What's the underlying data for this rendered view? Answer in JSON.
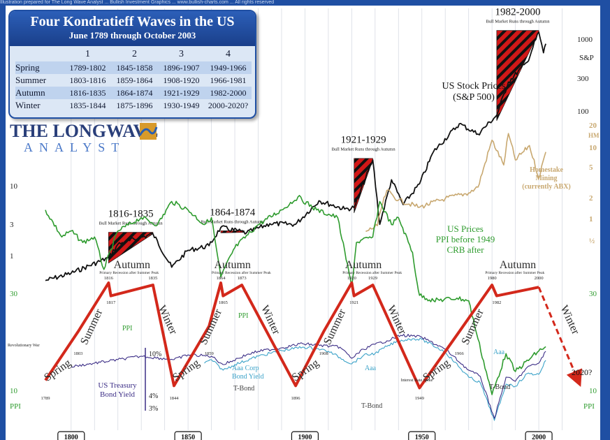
{
  "source_line": "Illustration prepared for The Long Wave Analyst ... Bullish Investment Graphics ... www.bullish-charts.com ... All rights reserved",
  "table": {
    "title": "Four Kondratieff Waves in the US",
    "subtitle": "June 1789 through October 2003",
    "columns": [
      "1",
      "2",
      "3",
      "4"
    ],
    "rows": [
      {
        "season": "Spring",
        "periods": [
          "1789-1802",
          "1845-1858",
          "1896-1907",
          "1949-1966"
        ]
      },
      {
        "season": "Summer",
        "periods": [
          "1803-1816",
          "1859-1864",
          "1908-1920",
          "1966-1981"
        ]
      },
      {
        "season": "Autumn",
        "periods": [
          "1816-1835",
          "1864-1874",
          "1921-1929",
          "1982-2000"
        ]
      },
      {
        "season": "Winter",
        "periods": [
          "1835-1844",
          "1875-1896",
          "1930-1949",
          "2000-2020?"
        ]
      }
    ]
  },
  "logo": {
    "line1": "THE LONGWAVE",
    "line2": "ANALYST"
  },
  "colors": {
    "background": "#1f4fa3",
    "wave": "#d3281b",
    "stock": "#111111",
    "ppi": "#2e9b2e",
    "homestake": "#c8a870",
    "aaa": "#3aa2c8",
    "treasury": "#5a4f8f",
    "tbond": "#3b2d86",
    "season_text": "#2b2b2b",
    "axis_green": "#2e9b2e",
    "axis_gold": "#c8a870"
  },
  "chart_data": {
    "type": "line",
    "title": "Four Kondratieff Waves in the US",
    "x_range": [
      1789,
      2020
    ],
    "x_tick_labels": [
      "1800",
      "1850",
      "1900",
      "1950",
      "2000"
    ],
    "wave": {
      "name": "Kondratieff wave",
      "points": [
        [
          1789,
          10
        ],
        [
          1803,
          55
        ],
        [
          1816,
          100
        ],
        [
          1817,
          88
        ],
        [
          1835,
          98
        ],
        [
          1844,
          5
        ],
        [
          1859,
          60
        ],
        [
          1864,
          100
        ],
        [
          1865,
          88
        ],
        [
          1873,
          98
        ],
        [
          1896,
          5
        ],
        [
          1908,
          55
        ],
        [
          1920,
          100
        ],
        [
          1921,
          88
        ],
        [
          1929,
          98
        ],
        [
          1949,
          3
        ],
        [
          1966,
          55
        ],
        [
          1980,
          98
        ],
        [
          1982,
          88
        ],
        [
          2000,
          96
        ],
        [
          2013,
          40
        ]
      ],
      "forecast_year": "2020?"
    },
    "season_labels": [
      {
        "text": "Spring",
        "year": 1795
      },
      {
        "text": "Summer",
        "year": 1810
      },
      {
        "text": "Autumn",
        "year": 1826
      },
      {
        "text": "Winter",
        "year": 1840
      },
      {
        "text": "Spring",
        "year": 1850
      },
      {
        "text": "Summer",
        "year": 1861
      },
      {
        "text": "Autumn",
        "year": 1869
      },
      {
        "text": "Winter",
        "year": 1884
      },
      {
        "text": "Spring",
        "year": 1901
      },
      {
        "text": "Summer",
        "year": 1914
      },
      {
        "text": "Autumn",
        "year": 1925
      },
      {
        "text": "Winter",
        "year": 1938
      },
      {
        "text": "Spring",
        "year": 1957
      },
      {
        "text": "Summer",
        "year": 1973
      },
      {
        "text": "Autumn",
        "year": 1991
      },
      {
        "text": "Winter",
        "year": 2012
      }
    ],
    "peak_labels": [
      "1816",
      "1817",
      "1835",
      "1864",
      "1865",
      "1873",
      "1920",
      "1921",
      "1929",
      "1980",
      "1982",
      "2000"
    ],
    "trough_labels": [
      "1789",
      "1844",
      "1896",
      "1949"
    ],
    "intermediate_labels": [
      "1803",
      "1859",
      "1908",
      "1966"
    ],
    "annotations": {
      "primary_recession": "Primary Recession after Summer Peak",
      "bull_market": "Bull Market Runs through Autumn",
      "revolutionary_war": "Revolutionary War",
      "interest_rate_spike": "Interest Rate Spike"
    },
    "bull_market_periods": [
      {
        "label": "1816-1835",
        "start": 1816,
        "end": 1835
      },
      {
        "label": "1864-1874",
        "start": 1864,
        "end": 1874
      },
      {
        "label": "1921-1929",
        "start": 1921,
        "end": 1929
      },
      {
        "label": "1982-2000",
        "start": 1982,
        "end": 2000
      }
    ],
    "series": [
      {
        "name": "US Stock Prices (S&P 500)",
        "label_lines": [
          "US Stock Prices",
          "(S&P 500)"
        ],
        "scale": "log",
        "points": [
          [
            1789,
            0.8
          ],
          [
            1800,
            1.0
          ],
          [
            1816,
            1.6
          ],
          [
            1820,
            2.4
          ],
          [
            1835,
            3.3
          ],
          [
            1843,
            1.2
          ],
          [
            1850,
            2.0
          ],
          [
            1859,
            2.3
          ],
          [
            1864,
            4.0
          ],
          [
            1875,
            3.4
          ],
          [
            1885,
            4.5
          ],
          [
            1896,
            4.4
          ],
          [
            1906,
            9.0
          ],
          [
            1917,
            7.0
          ],
          [
            1921,
            7.3
          ],
          [
            1929,
            31
          ],
          [
            1932,
            4.4
          ],
          [
            1937,
            17
          ],
          [
            1942,
            8.0
          ],
          [
            1949,
            15
          ],
          [
            1955,
            40
          ],
          [
            1966,
            93
          ],
          [
            1974,
            68
          ],
          [
            1982,
            120
          ],
          [
            1987,
            330
          ],
          [
            1995,
            600
          ],
          [
            2000,
            1500
          ],
          [
            2002,
            800
          ],
          [
            2003,
            1050
          ]
        ]
      },
      {
        "name": "Homestake Mining (currently ABX)",
        "label_lines": [
          "Homestake",
          "Mining",
          "(currently ABX)"
        ],
        "scale": "log",
        "points": [
          [
            1926,
            0.75
          ],
          [
            1931,
            0.9
          ],
          [
            1932,
            1.3
          ],
          [
            1935,
            2.7
          ],
          [
            1940,
            2.0
          ],
          [
            1949,
            1.6
          ],
          [
            1960,
            2.1
          ],
          [
            1970,
            2.5
          ],
          [
            1974,
            3.0
          ],
          [
            1980,
            13
          ],
          [
            1985,
            6.0
          ],
          [
            1987,
            16
          ],
          [
            1990,
            7.0
          ],
          [
            1996,
            11
          ],
          [
            2000,
            4.0
          ],
          [
            2003,
            9.0
          ]
        ]
      },
      {
        "name": "US Prices",
        "label_lines": [
          "US Prices",
          "PPI before 1949",
          "CRB after"
        ],
        "points": [
          [
            1789,
            10
          ],
          [
            1796,
            14
          ],
          [
            1800,
            13
          ],
          [
            1805,
            15
          ],
          [
            1810,
            14
          ],
          [
            1814,
            21
          ],
          [
            1820,
            13
          ],
          [
            1830,
            11
          ],
          [
            1837,
            12
          ],
          [
            1843,
            9
          ],
          [
            1850,
            10
          ],
          [
            1857,
            12
          ],
          [
            1860,
            11
          ],
          [
            1864,
            23
          ],
          [
            1870,
            16
          ],
          [
            1880,
            12
          ],
          [
            1890,
            10
          ],
          [
            1897,
            8.5
          ],
          [
            1905,
            10
          ],
          [
            1914,
            11
          ],
          [
            1920,
            26
          ],
          [
            1922,
            15
          ],
          [
            1929,
            14
          ],
          [
            1932,
            9
          ],
          [
            1937,
            12
          ],
          [
            1940,
            11
          ],
          [
            1946,
            17
          ],
          [
            1948,
            25
          ],
          [
            1949,
            29
          ],
          [
            1955,
            31
          ],
          [
            1965,
            30
          ],
          [
            1970,
            31
          ],
          [
            1974,
            50
          ],
          [
            1980,
            100
          ],
          [
            1986,
            60
          ],
          [
            1990,
            75
          ],
          [
            2000,
            58
          ],
          [
            2003,
            55
          ]
        ]
      },
      {
        "name": "Aaa Corp Bond Yield",
        "label_lines": [
          "Aaa Corp",
          "Bond Yield"
        ],
        "top_label": "Aaa",
        "points": [
          [
            1857,
            6.0
          ],
          [
            1860,
            5.5
          ],
          [
            1865,
            7.0
          ],
          [
            1870,
            6.2
          ],
          [
            1880,
            5.0
          ],
          [
            1890,
            4.2
          ],
          [
            1899,
            3.7
          ],
          [
            1905,
            3.9
          ],
          [
            1910,
            4.3
          ],
          [
            1920,
            6.1
          ],
          [
            1925,
            4.9
          ],
          [
            1930,
            4.6
          ],
          [
            1935,
            3.6
          ],
          [
            1940,
            2.8
          ],
          [
            1946,
            2.5
          ],
          [
            1950,
            2.6
          ],
          [
            1960,
            4.4
          ],
          [
            1970,
            8.0
          ],
          [
            1975,
            8.8
          ],
          [
            1981,
            14.2
          ],
          [
            1986,
            9.0
          ],
          [
            1990,
            9.3
          ],
          [
            1995,
            7.5
          ],
          [
            2000,
            7.6
          ],
          [
            2003,
            5.6
          ]
        ]
      },
      {
        "name": "US Treasury Bond Yield",
        "label_lines": [
          "US Treasury",
          "Bond Yield"
        ],
        "side_label": "T-Bond",
        "points": [
          [
            1800,
            6.5
          ],
          [
            1810,
            6.0
          ],
          [
            1820,
            5.5
          ],
          [
            1830,
            5.0
          ],
          [
            1844,
            5.5
          ],
          [
            1850,
            4.8
          ],
          [
            1860,
            5.0
          ],
          [
            1865,
            6.2
          ],
          [
            1875,
            4.8
          ],
          [
            1880,
            4.3
          ],
          [
            1890,
            3.8
          ],
          [
            1899,
            3.2
          ],
          [
            1905,
            3.4
          ],
          [
            1915,
            3.7
          ],
          [
            1920,
            5.3
          ],
          [
            1925,
            4.0
          ],
          [
            1930,
            3.3
          ],
          [
            1935,
            2.8
          ],
          [
            1941,
            2.0
          ],
          [
            1946,
            2.1
          ],
          [
            1950,
            2.3
          ],
          [
            1960,
            4.0
          ],
          [
            1970,
            7.0
          ],
          [
            1975,
            7.9
          ],
          [
            1981,
            13.9
          ],
          [
            1986,
            8.0
          ],
          [
            1990,
            8.6
          ],
          [
            1995,
            6.6
          ],
          [
            2000,
            6.0
          ],
          [
            2003,
            4.3
          ]
        ]
      }
    ],
    "bond_scale": [
      "10%",
      "4%",
      "3%"
    ],
    "left_axis": {
      "stock_ticks": [
        "10",
        "3",
        "1"
      ],
      "ppi_ticks": [
        "30",
        "10"
      ],
      "ppi_label": "PPI"
    },
    "right_axis": {
      "sp_ticks": [
        "1000",
        "300",
        "100"
      ],
      "sp_label": "S&P",
      "hm_ticks": [
        "20",
        "10",
        "5",
        "2",
        "1",
        "½"
      ],
      "hm_label": "HM",
      "ppi_ticks": [
        "30",
        "10"
      ],
      "ppi_label": "PPI"
    },
    "forecast_label": "2020?"
  }
}
